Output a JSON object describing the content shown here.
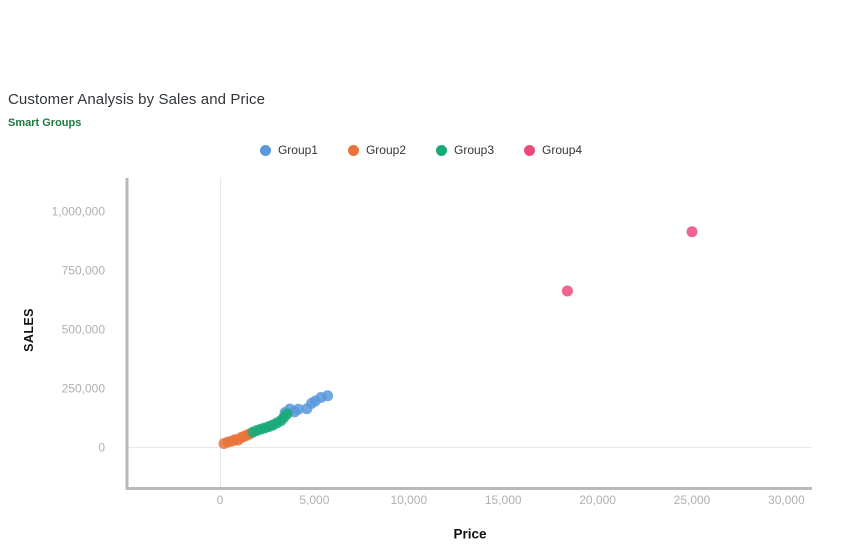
{
  "header": {
    "title": "Customer Analysis by Sales and Price",
    "subtitle": "Smart Groups"
  },
  "legend": {
    "position": "top-center",
    "items": [
      {
        "label": "Group1",
        "color": "#5899DA"
      },
      {
        "label": "Group2",
        "color": "#E8743B"
      },
      {
        "label": "Group3",
        "color": "#19A979"
      },
      {
        "label": "Group4",
        "color": "#ED4A7B"
      }
    ]
  },
  "axes": {
    "x_title": "Price",
    "y_title": "SALES"
  },
  "colors": {
    "axis_line": "#b9b9b9",
    "gridline": "#e8e8e8",
    "tick_label": "#aeb0b3",
    "subtitle_green": "#1f7a3f"
  },
  "chart_data": {
    "type": "scatter",
    "title": "Customer Analysis by Sales and Price",
    "subtitle": "Smart Groups",
    "xlabel": "Price",
    "ylabel": "SALES",
    "xlim": [
      0,
      30000
    ],
    "ylim": [
      0,
      1000000
    ],
    "grid": "zero-lines-only",
    "legend_position": "top-center",
    "point_opacity": 0.85,
    "x_ticks": [
      {
        "value": 0,
        "label": "0"
      },
      {
        "value": 5000,
        "label": "5,000"
      },
      {
        "value": 10000,
        "label": "10,000"
      },
      {
        "value": 15000,
        "label": "15,000"
      },
      {
        "value": 20000,
        "label": "20,000"
      },
      {
        "value": 25000,
        "label": "25,000"
      },
      {
        "value": 30000,
        "label": "30,000"
      }
    ],
    "y_ticks": [
      {
        "value": 0,
        "label": "0"
      },
      {
        "value": 250000,
        "label": "250,000"
      },
      {
        "value": 500000,
        "label": "500,000"
      },
      {
        "value": 750000,
        "label": "750,000"
      },
      {
        "value": 1000000,
        "label": "1,000,000"
      }
    ],
    "series": [
      {
        "name": "Group1",
        "color": "#5899DA",
        "points": [
          [
            3450,
            146000
          ],
          [
            3700,
            161000
          ],
          [
            3950,
            149000
          ],
          [
            4150,
            160000
          ],
          [
            4600,
            162000
          ],
          [
            4850,
            185000
          ],
          [
            5050,
            195000
          ],
          [
            5350,
            210000
          ],
          [
            5700,
            217000
          ]
        ]
      },
      {
        "name": "Group2",
        "color": "#E8743B",
        "points": [
          [
            210,
            15000
          ],
          [
            420,
            21000
          ],
          [
            640,
            25000
          ],
          [
            800,
            31000
          ],
          [
            950,
            29000
          ],
          [
            1120,
            40000
          ],
          [
            1280,
            45000
          ],
          [
            1430,
            50000
          ],
          [
            1590,
            56000
          ]
        ]
      },
      {
        "name": "Group3",
        "color": "#19A979",
        "points": [
          [
            1750,
            63000
          ],
          [
            1950,
            70000
          ],
          [
            2170,
            76000
          ],
          [
            2380,
            81000
          ],
          [
            2600,
            87000
          ],
          [
            2800,
            93000
          ],
          [
            3020,
            102000
          ],
          [
            3230,
            112000
          ],
          [
            3380,
            125000
          ],
          [
            3550,
            140000
          ]
        ]
      },
      {
        "name": "Group4",
        "color": "#ED4A7B",
        "points": [
          [
            18400,
            661000
          ],
          [
            25000,
            912000
          ]
        ]
      }
    ]
  }
}
